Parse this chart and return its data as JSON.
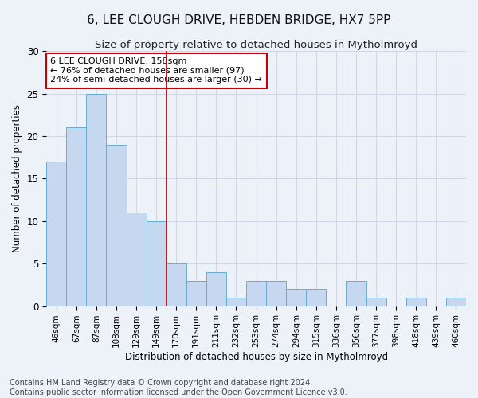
{
  "title": "6, LEE CLOUGH DRIVE, HEBDEN BRIDGE, HX7 5PP",
  "subtitle": "Size of property relative to detached houses in Mytholmroyd",
  "xlabel": "Distribution of detached houses by size in Mytholmroyd",
  "ylabel": "Number of detached properties",
  "categories": [
    "46sqm",
    "67sqm",
    "87sqm",
    "108sqm",
    "129sqm",
    "149sqm",
    "170sqm",
    "191sqm",
    "211sqm",
    "232sqm",
    "253sqm",
    "274sqm",
    "294sqm",
    "315sqm",
    "336sqm",
    "356sqm",
    "377sqm",
    "398sqm",
    "418sqm",
    "439sqm",
    "460sqm"
  ],
  "values": [
    17,
    21,
    25,
    19,
    11,
    10,
    5,
    3,
    4,
    1,
    3,
    3,
    2,
    2,
    0,
    3,
    1,
    0,
    1,
    0,
    1
  ],
  "bar_color": "#c5d8ef",
  "bar_edge_color": "#6aaad4",
  "bar_edge_width": 0.7,
  "vline_x_index": 5,
  "vline_color": "#cc0000",
  "annotation_text": "6 LEE CLOUGH DRIVE: 158sqm\n← 76% of detached houses are smaller (97)\n24% of semi-detached houses are larger (30) →",
  "annotation_box_color": "#ffffff",
  "annotation_box_edge_color": "#cc0000",
  "ylim": [
    0,
    30
  ],
  "yticks": [
    0,
    5,
    10,
    15,
    20,
    25,
    30
  ],
  "grid_color": "#d0d8e8",
  "bg_color": "#edf2f9",
  "title_fontsize": 11,
  "subtitle_fontsize": 9.5,
  "footer_text": "Contains HM Land Registry data © Crown copyright and database right 2024.\nContains public sector information licensed under the Open Government Licence v3.0.",
  "footer_fontsize": 7
}
